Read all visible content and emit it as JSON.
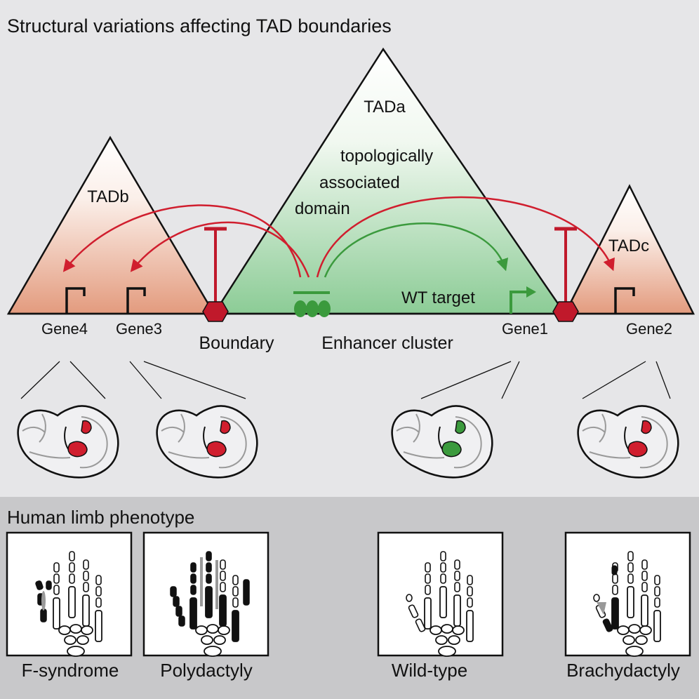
{
  "title": "Structural variations affecting TAD boundaries",
  "tads": {
    "a": "TADa",
    "b": "TADb",
    "c": "TADc",
    "description": [
      "topologically",
      "associated",
      "domain"
    ]
  },
  "labels": {
    "wt_target": "WT target",
    "boundary": "Boundary",
    "enhancer_cluster": "Enhancer cluster"
  },
  "genes": [
    "Gene4",
    "Gene3",
    "Gene1",
    "Gene2"
  ],
  "phenotype_section": {
    "title": "Human limb phenotype",
    "panels": [
      "F-syndrome",
      "Polydactyly",
      "Wild-type",
      "Brachydactyly"
    ]
  },
  "colors": {
    "background": "#e6e6e8",
    "lower_band": "#c8c8ca",
    "tad_green": "#9fd3a6",
    "tad_orange": "#e8a486",
    "red": "#d01e2e",
    "green": "#3b9a3d",
    "gray_bone": "#999999"
  }
}
